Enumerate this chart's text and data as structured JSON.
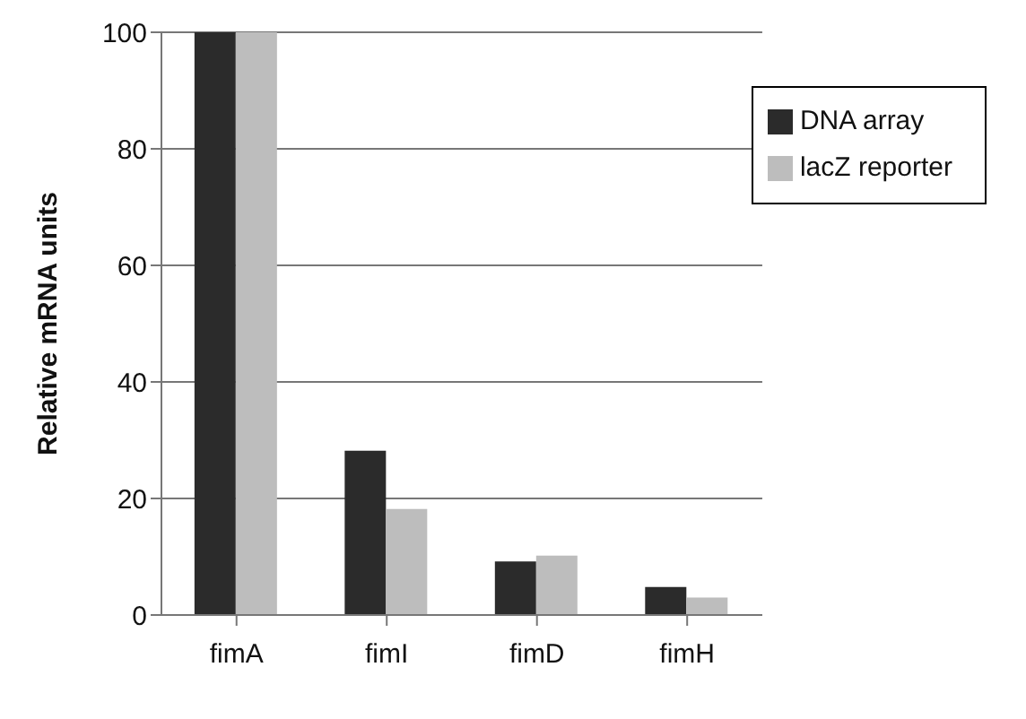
{
  "chart_data": {
    "type": "bar",
    "ylabel": "Relative mRNA units",
    "categories": [
      "fimA",
      "fimI",
      "fimD",
      "fimH"
    ],
    "series": [
      {
        "name": "DNA array",
        "color": "#2b2b2b",
        "values": [
          100,
          28.2,
          9.2,
          4.8
        ]
      },
      {
        "name": "lacZ reporter",
        "color": "#bdbdbd",
        "values": [
          100,
          18.2,
          10.2,
          3.0
        ]
      }
    ],
    "ylim": [
      0,
      100
    ],
    "yticks": [
      0,
      20,
      40,
      60,
      80,
      100
    ],
    "grid": "y",
    "legend": "top right"
  }
}
